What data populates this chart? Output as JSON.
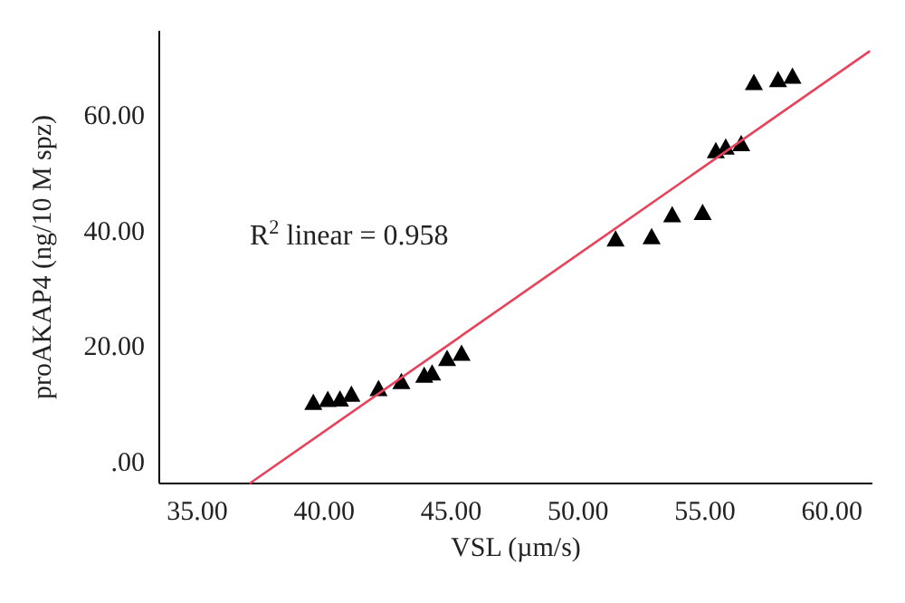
{
  "chart_data": {
    "type": "scatter",
    "xlabel": "VSL (µm/s)",
    "ylabel": "proAKAP4 (ng/10 M spz)",
    "annotations": [
      "R$^{2}$ linear = 0.958"
    ],
    "xlim": [
      33.5,
      61.6
    ],
    "ylim": [
      -3.8,
      74.6
    ],
    "xticks": [
      {
        "value": 35,
        "label": "35.00"
      },
      {
        "value": 40,
        "label": "40.00"
      },
      {
        "value": 45,
        "label": "45.00"
      },
      {
        "value": 50,
        "label": "50.00"
      },
      {
        "value": 55,
        "label": "55.00"
      },
      {
        "value": 60,
        "label": "60.00"
      }
    ],
    "yticks": [
      {
        "value": 0,
        "label": ".00"
      },
      {
        "value": 20,
        "label": "20.00"
      },
      {
        "value": 40,
        "label": "40.00"
      },
      {
        "value": 60,
        "label": "60.00"
      }
    ],
    "grid": false,
    "marker": "triangle",
    "series": [
      {
        "color": "#000000",
        "x": [
          39.57,
          40.14,
          40.62,
          41.07,
          42.14,
          43.04,
          43.94,
          44.25,
          44.84,
          45.41,
          51.48,
          52.9,
          53.71,
          54.91,
          55.43,
          55.82,
          56.43,
          56.93,
          57.88,
          58.45
        ],
        "values": [
          10.2,
          10.7,
          10.8,
          11.6,
          12.6,
          13.8,
          14.9,
          15.3,
          17.8,
          18.7,
          38.5,
          38.9,
          42.7,
          43.1,
          53.8,
          54.4,
          55.0,
          65.6,
          66.1,
          66.7
        ]
      },
      {
        "type": "line",
        "color": "#e8435a",
        "line_style": "solid",
        "marker": "none",
        "x": [
          37.06,
          61.5
        ],
        "values": [
          -3.8,
          71.1
        ]
      }
    ]
  }
}
